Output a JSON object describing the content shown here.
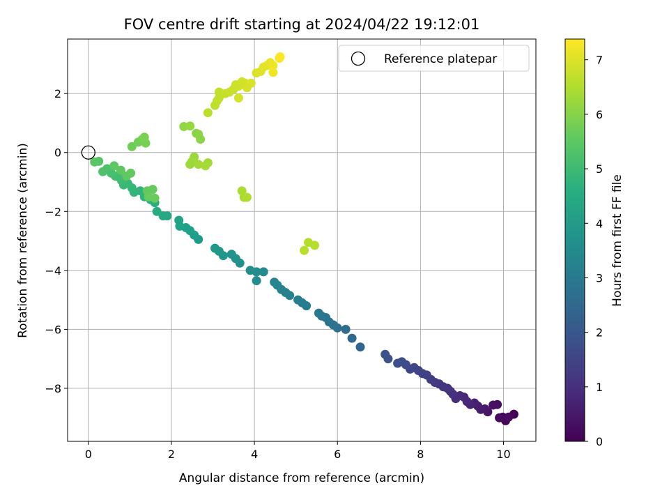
{
  "chart_data": {
    "type": "scatter",
    "title": "FOV centre drift starting at 2024/04/22 19:12:01",
    "xlabel": "Angular distance from reference (arcmin)",
    "ylabel": "Rotation from reference (arcmin)",
    "colorbar_label": "Hours from first FF file",
    "colormap": "viridis",
    "xlim": [
      -0.5,
      10.78
    ],
    "ylim": [
      -9.8,
      3.85
    ],
    "clim": [
      0,
      7.38
    ],
    "xticks": [
      0,
      2,
      4,
      6,
      8,
      10
    ],
    "yticks": [
      -8,
      -6,
      -4,
      -2,
      0,
      2
    ],
    "cticks": [
      0,
      1,
      2,
      3,
      4,
      5,
      6,
      7
    ],
    "grid": true,
    "legend": {
      "position": "top-right",
      "label": "Reference platepar",
      "marker": "open-circle"
    },
    "reference_point": {
      "x": 0,
      "y": 0
    },
    "points": [
      {
        "x": 10.25,
        "y": -8.88,
        "t": 0.02
      },
      {
        "x": 10.05,
        "y": -9.1,
        "t": 0.08
      },
      {
        "x": 9.98,
        "y": -8.98,
        "t": 0.12
      },
      {
        "x": 9.9,
        "y": -9.0,
        "t": 0.18
      },
      {
        "x": 10.12,
        "y": -8.98,
        "t": 0.22
      },
      {
        "x": 9.85,
        "y": -8.55,
        "t": 0.28
      },
      {
        "x": 9.75,
        "y": -8.57,
        "t": 0.34
      },
      {
        "x": 9.62,
        "y": -8.8,
        "t": 0.42
      },
      {
        "x": 9.55,
        "y": -8.7,
        "t": 0.48
      },
      {
        "x": 9.45,
        "y": -8.72,
        "t": 0.55
      },
      {
        "x": 9.38,
        "y": -8.6,
        "t": 0.6
      },
      {
        "x": 9.3,
        "y": -8.5,
        "t": 0.67
      },
      {
        "x": 9.2,
        "y": -8.55,
        "t": 0.72
      },
      {
        "x": 9.12,
        "y": -8.45,
        "t": 0.8
      },
      {
        "x": 9.05,
        "y": -8.3,
        "t": 0.85
      },
      {
        "x": 8.95,
        "y": -8.25,
        "t": 0.9
      },
      {
        "x": 8.85,
        "y": -8.35,
        "t": 0.95
      },
      {
        "x": 8.78,
        "y": -8.2,
        "t": 1.0
      },
      {
        "x": 8.72,
        "y": -8.1,
        "t": 1.05
      },
      {
        "x": 8.65,
        "y": -8.0,
        "t": 1.1
      },
      {
        "x": 8.55,
        "y": -7.95,
        "t": 1.15
      },
      {
        "x": 8.45,
        "y": -7.85,
        "t": 1.2
      },
      {
        "x": 8.35,
        "y": -7.8,
        "t": 1.25
      },
      {
        "x": 8.25,
        "y": -7.7,
        "t": 1.32
      },
      {
        "x": 8.15,
        "y": -7.55,
        "t": 1.4
      },
      {
        "x": 8.05,
        "y": -7.5,
        "t": 1.45
      },
      {
        "x": 7.95,
        "y": -7.4,
        "t": 1.5
      },
      {
        "x": 7.85,
        "y": -7.3,
        "t": 1.55
      },
      {
        "x": 7.75,
        "y": -7.35,
        "t": 1.6
      },
      {
        "x": 7.65,
        "y": -7.2,
        "t": 1.65
      },
      {
        "x": 7.55,
        "y": -7.1,
        "t": 1.72
      },
      {
        "x": 7.45,
        "y": -7.15,
        "t": 1.78
      },
      {
        "x": 7.22,
        "y": -7.0,
        "t": 1.85
      },
      {
        "x": 7.15,
        "y": -6.85,
        "t": 1.92
      },
      {
        "x": 6.55,
        "y": -6.6,
        "t": 2.35
      },
      {
        "x": 6.35,
        "y": -6.3,
        "t": 2.5
      },
      {
        "x": 6.2,
        "y": -6.0,
        "t": 2.6
      },
      {
        "x": 6.0,
        "y": -5.95,
        "t": 2.7
      },
      {
        "x": 5.9,
        "y": -5.85,
        "t": 2.78
      },
      {
        "x": 5.8,
        "y": -5.75,
        "t": 2.82
      },
      {
        "x": 5.72,
        "y": -5.6,
        "t": 2.88
      },
      {
        "x": 5.62,
        "y": -5.55,
        "t": 2.92
      },
      {
        "x": 5.55,
        "y": -5.45,
        "t": 2.96
      },
      {
        "x": 5.25,
        "y": -5.2,
        "t": 3.05
      },
      {
        "x": 5.15,
        "y": -5.1,
        "t": 3.1
      },
      {
        "x": 5.05,
        "y": -5.0,
        "t": 3.15
      },
      {
        "x": 4.85,
        "y": -4.85,
        "t": 3.22
      },
      {
        "x": 4.75,
        "y": -4.75,
        "t": 3.27
      },
      {
        "x": 4.65,
        "y": -4.65,
        "t": 3.32
      },
      {
        "x": 4.55,
        "y": -4.5,
        "t": 3.36
      },
      {
        "x": 4.48,
        "y": -4.4,
        "t": 3.4
      },
      {
        "x": 4.22,
        "y": -4.05,
        "t": 3.5
      },
      {
        "x": 4.05,
        "y": -4.05,
        "t": 3.55
      },
      {
        "x": 4.05,
        "y": -4.35,
        "t": 3.58
      },
      {
        "x": 3.9,
        "y": -4.0,
        "t": 3.62
      },
      {
        "x": 3.65,
        "y": -3.75,
        "t": 3.7
      },
      {
        "x": 3.55,
        "y": -3.6,
        "t": 3.76
      },
      {
        "x": 3.45,
        "y": -3.45,
        "t": 3.8
      },
      {
        "x": 3.25,
        "y": -3.5,
        "t": 3.86
      },
      {
        "x": 3.15,
        "y": -3.35,
        "t": 3.9
      },
      {
        "x": 3.05,
        "y": -3.25,
        "t": 3.95
      },
      {
        "x": 2.65,
        "y": -2.95,
        "t": 4.05
      },
      {
        "x": 2.55,
        "y": -2.8,
        "t": 4.1
      },
      {
        "x": 2.45,
        "y": -2.65,
        "t": 4.15
      },
      {
        "x": 2.35,
        "y": -2.55,
        "t": 4.18
      },
      {
        "x": 2.2,
        "y": -2.5,
        "t": 4.22
      },
      {
        "x": 2.18,
        "y": -2.3,
        "t": 4.25
      },
      {
        "x": 1.9,
        "y": -2.15,
        "t": 4.35
      },
      {
        "x": 1.8,
        "y": -2.15,
        "t": 4.4
      },
      {
        "x": 1.65,
        "y": -2.0,
        "t": 4.5
      },
      {
        "x": 1.6,
        "y": -1.7,
        "t": 4.6
      },
      {
        "x": 1.5,
        "y": -1.6,
        "t": 4.65
      },
      {
        "x": 1.35,
        "y": -1.5,
        "t": 4.75
      },
      {
        "x": 1.25,
        "y": -1.3,
        "t": 4.8
      },
      {
        "x": 1.1,
        "y": -1.35,
        "t": 4.85
      },
      {
        "x": 1.05,
        "y": -1.2,
        "t": 4.9
      },
      {
        "x": 0.95,
        "y": -1.05,
        "t": 4.95
      },
      {
        "x": 0.85,
        "y": -1.1,
        "t": 5.0
      },
      {
        "x": 0.8,
        "y": -0.95,
        "t": 5.05
      },
      {
        "x": 0.75,
        "y": -0.85,
        "t": 5.1
      },
      {
        "x": 0.65,
        "y": -0.8,
        "t": 5.15
      },
      {
        "x": 0.55,
        "y": -0.7,
        "t": 5.2
      },
      {
        "x": 0.45,
        "y": -0.55,
        "t": 5.25
      },
      {
        "x": 0.35,
        "y": -0.65,
        "t": 5.3
      },
      {
        "x": 0.25,
        "y": -0.3,
        "t": 5.4
      },
      {
        "x": 0.15,
        "y": -0.32,
        "t": 5.45
      },
      {
        "x": 0.62,
        "y": -0.45,
        "t": 5.5
      },
      {
        "x": 0.78,
        "y": -0.6,
        "t": 5.52
      },
      {
        "x": 0.92,
        "y": -0.8,
        "t": 5.55
      },
      {
        "x": 1.02,
        "y": -0.7,
        "t": 5.58
      },
      {
        "x": 1.42,
        "y": -1.3,
        "t": 5.6
      },
      {
        "x": 1.55,
        "y": -1.25,
        "t": 5.62
      },
      {
        "x": 1.45,
        "y": -1.5,
        "t": 5.65
      },
      {
        "x": 1.6,
        "y": -1.55,
        "t": 5.68
      },
      {
        "x": 1.05,
        "y": 0.2,
        "t": 5.75
      },
      {
        "x": 1.2,
        "y": 0.35,
        "t": 5.78
      },
      {
        "x": 1.3,
        "y": 0.45,
        "t": 5.82
      },
      {
        "x": 1.38,
        "y": 0.32,
        "t": 5.85
      },
      {
        "x": 1.35,
        "y": 0.52,
        "t": 5.88
      },
      {
        "x": 2.6,
        "y": 0.65,
        "t": 6.05
      },
      {
        "x": 2.65,
        "y": 0.62,
        "t": 6.08
      },
      {
        "x": 2.7,
        "y": 0.45,
        "t": 6.1
      },
      {
        "x": 2.3,
        "y": 0.88,
        "t": 6.18
      },
      {
        "x": 2.45,
        "y": 0.9,
        "t": 6.2
      },
      {
        "x": 2.55,
        "y": -0.15,
        "t": 6.28
      },
      {
        "x": 2.5,
        "y": -0.3,
        "t": 6.3
      },
      {
        "x": 2.45,
        "y": -0.4,
        "t": 6.32
      },
      {
        "x": 2.65,
        "y": -0.4,
        "t": 6.35
      },
      {
        "x": 2.88,
        "y": -0.35,
        "t": 6.38
      },
      {
        "x": 2.82,
        "y": -0.45,
        "t": 6.4
      },
      {
        "x": 3.7,
        "y": -1.3,
        "t": 6.45
      },
      {
        "x": 3.75,
        "y": -1.52,
        "t": 6.48
      },
      {
        "x": 3.82,
        "y": -1.52,
        "t": 6.5
      },
      {
        "x": 5.3,
        "y": -3.05,
        "t": 6.55
      },
      {
        "x": 5.45,
        "y": -3.15,
        "t": 6.58
      },
      {
        "x": 5.2,
        "y": -3.32,
        "t": 6.6
      },
      {
        "x": 2.88,
        "y": 1.35,
        "t": 6.62
      },
      {
        "x": 3.05,
        "y": 1.6,
        "t": 6.65
      },
      {
        "x": 3.1,
        "y": 1.75,
        "t": 6.67
      },
      {
        "x": 3.15,
        "y": 1.85,
        "t": 6.7
      },
      {
        "x": 3.15,
        "y": 2.05,
        "t": 6.72
      },
      {
        "x": 3.3,
        "y": 2.0,
        "t": 6.75
      },
      {
        "x": 3.4,
        "y": 2.05,
        "t": 6.78
      },
      {
        "x": 3.5,
        "y": 2.15,
        "t": 6.8
      },
      {
        "x": 3.55,
        "y": 2.3,
        "t": 6.82
      },
      {
        "x": 3.62,
        "y": 2.25,
        "t": 6.85
      },
      {
        "x": 3.7,
        "y": 2.4,
        "t": 6.88
      },
      {
        "x": 3.78,
        "y": 2.35,
        "t": 6.9
      },
      {
        "x": 3.62,
        "y": 1.85,
        "t": 6.92
      },
      {
        "x": 3.82,
        "y": 2.2,
        "t": 6.94
      },
      {
        "x": 3.92,
        "y": 2.35,
        "t": 6.96
      },
      {
        "x": 4.05,
        "y": 2.7,
        "t": 7.0
      },
      {
        "x": 4.15,
        "y": 2.75,
        "t": 7.04
      },
      {
        "x": 4.22,
        "y": 2.9,
        "t": 7.07
      },
      {
        "x": 4.3,
        "y": 2.95,
        "t": 7.1
      },
      {
        "x": 4.38,
        "y": 3.05,
        "t": 7.15
      },
      {
        "x": 4.45,
        "y": 2.95,
        "t": 7.2
      },
      {
        "x": 4.45,
        "y": 2.72,
        "t": 7.25
      },
      {
        "x": 4.6,
        "y": 3.2,
        "t": 7.32
      },
      {
        "x": 4.62,
        "y": 3.25,
        "t": 7.36
      }
    ]
  }
}
